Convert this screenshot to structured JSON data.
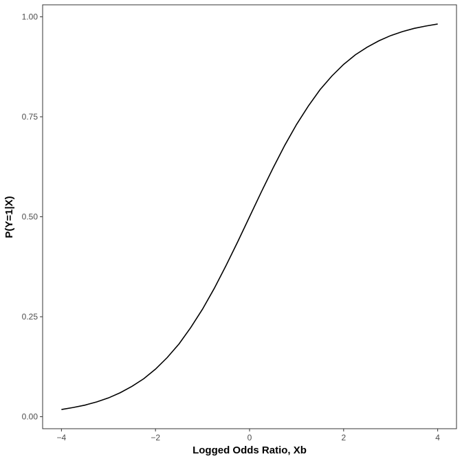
{
  "chart_data": {
    "type": "line",
    "x_label": "Logged Odds Ratio, Xb",
    "y_label": "P(Y=1|X)",
    "x": [
      -4,
      -3.75,
      -3.5,
      -3.25,
      -3,
      -2.75,
      -2.5,
      -2.25,
      -2,
      -1.75,
      -1.5,
      -1.25,
      -1,
      -0.75,
      -0.5,
      -0.25,
      0,
      0.25,
      0.5,
      0.75,
      1,
      1.25,
      1.5,
      1.75,
      2,
      2.25,
      2.5,
      2.75,
      3,
      3.25,
      3.5,
      3.75,
      4
    ],
    "values": [
      0.018,
      0.023,
      0.029,
      0.037,
      0.047,
      0.06,
      0.076,
      0.095,
      0.119,
      0.148,
      0.182,
      0.223,
      0.269,
      0.321,
      0.378,
      0.438,
      0.5,
      0.562,
      0.622,
      0.679,
      0.731,
      0.777,
      0.818,
      0.852,
      0.881,
      0.905,
      0.924,
      0.94,
      0.953,
      0.963,
      0.971,
      0.977,
      0.982
    ],
    "color": "#000000",
    "xlim": [
      -4.4,
      4.4
    ],
    "ylim": [
      -0.03,
      1.03
    ],
    "xticks": [
      {
        "value": -4,
        "label": "−4"
      },
      {
        "value": -2,
        "label": "−2"
      },
      0,
      2,
      4
    ],
    "yticks": [
      {
        "value": 0,
        "label": "0.00"
      },
      0.25,
      {
        "value": 0.5,
        "label": "0.50"
      },
      0.75,
      {
        "value": 1,
        "label": "1.00"
      }
    ],
    "grid": false
  }
}
